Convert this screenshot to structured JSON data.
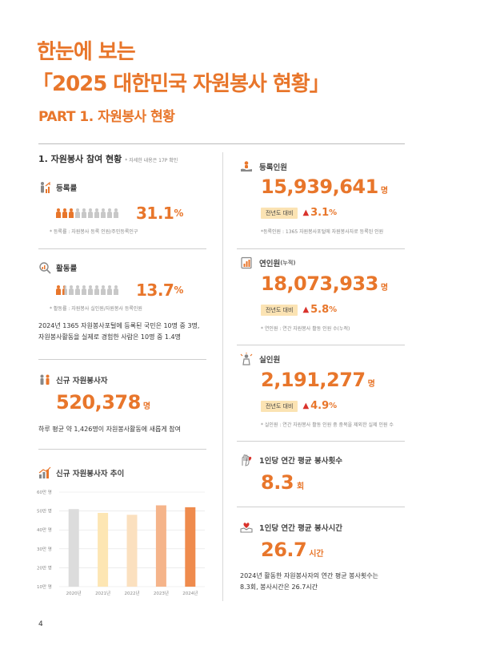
{
  "header": {
    "title_line1": "한눈에 보는",
    "title_line2": "「2025 대한민국 자원봉사 현황」",
    "part": "PART 1. 자원봉사 현황"
  },
  "left": {
    "section_title": "1. 자원봉사 참여 현황",
    "section_note": "* 자세한 내용은 17P 확인",
    "registration": {
      "label": "등록률",
      "value": "31.1",
      "unit": "%",
      "filled": 3,
      "total": 10,
      "note": "* 등록률 : 자원봉사 등록 인원/주민등록인구"
    },
    "activity": {
      "label": "활동률",
      "value": "13.7",
      "unit": "%",
      "filled": 1.4,
      "total": 10,
      "note": "* 활동률 : 자원봉사 실인원/자원봉사 등록인원",
      "desc_line1": "2024년 1365 자원봉사포털에 등록된 국민은 10명 중 3명,",
      "desc_line2": "자원봉사활동을 실제로 경험한 사람은 10명 중 1.4명"
    },
    "new_volunteers": {
      "label": "신규 자원봉사자",
      "value": "520,378",
      "unit": "명",
      "desc": "하루 평균 약 1,426명이 자원봉사활동에 새롭게 참여"
    },
    "trend": {
      "label": "신규 자원봉사자 추이"
    }
  },
  "chart_data": {
    "type": "bar",
    "categories": [
      "2020년",
      "2021년",
      "2022년",
      "2023년",
      "2024년"
    ],
    "values": [
      51,
      49,
      48,
      53,
      52
    ],
    "y_ticks": [
      "10만 명",
      "20만 명",
      "30만 명",
      "40만 명",
      "50만 명",
      "60만 명"
    ],
    "ylim": [
      10,
      60
    ],
    "colors": [
      "#dcdcdc",
      "#fde6b3",
      "#fbe0bf",
      "#f5b48a",
      "#ef8b4d"
    ],
    "grid": true
  },
  "right": {
    "registered": {
      "label": "등록인원",
      "value": "15,939,641",
      "unit": "명",
      "badge": "전년도 대비",
      "change": "3.1",
      "change_unit": "%",
      "note": "*등록인원 : 1365 자원봉사포털에 자원봉사자로 등록된 인원"
    },
    "cumulative": {
      "label": "연인원",
      "label_suffix": "(누적)",
      "value": "18,073,933",
      "unit": "명",
      "badge": "전년도 대비",
      "change": "5.8",
      "change_unit": "%",
      "note": "* 연인원 : 연간 자원봉사 활동 인원 수(누적)"
    },
    "actual": {
      "label": "실인원",
      "value": "2,191,277",
      "unit": "명",
      "badge": "전년도 대비",
      "change": "4.9",
      "change_unit": "%",
      "note": "* 실인원 : 연간 자원봉사 활동 인원 중 중복을 제외한 실제 인원 수"
    },
    "count": {
      "label": "1인당 연간 평균 봉사횟수",
      "value": "8.3",
      "unit": "회"
    },
    "hours": {
      "label": "1인당 연간 평균 봉사시간",
      "value": "26.7",
      "unit": "시간",
      "desc_line1": "2024년 활동한 자원봉사자의 연간 평균 봉사횟수는",
      "desc_line2": "8.3회, 봉사시간은 26.7시간"
    }
  },
  "footer": {
    "page_number": "4"
  },
  "colors": {
    "accent": "#e8762b",
    "badge": "#fbe3b3",
    "up": "#d9322b",
    "person_off": "#c8c8c8"
  }
}
